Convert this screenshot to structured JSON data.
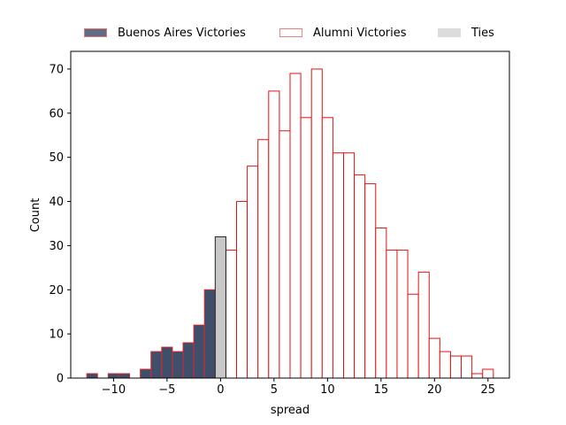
{
  "chart_data": {
    "type": "bar",
    "xlabel": "spread",
    "ylabel": "Count",
    "xlim": [
      -14,
      27
    ],
    "ylim": [
      0,
      74
    ],
    "xticks": [
      -10,
      -5,
      0,
      5,
      10,
      15,
      20,
      25
    ],
    "yticks": [
      0,
      10,
      20,
      30,
      40,
      50,
      60,
      70
    ],
    "bin_width": 1,
    "legend_position": "top-center, outside plot",
    "series": [
      {
        "name": "Buenos Aires Victories",
        "color": "#3f4f6b",
        "edgecolor": "#d62728",
        "x": [
          -12,
          -10,
          -9,
          -7,
          -6,
          -5,
          -4,
          -3,
          -2,
          -1
        ],
        "values": [
          1,
          1,
          1,
          2,
          6,
          7,
          6,
          8,
          12,
          20
        ]
      },
      {
        "name": "Alumni Victories",
        "color": "#ffffff",
        "edgecolor": "#e81010",
        "x": [
          1,
          2,
          3,
          4,
          5,
          6,
          7,
          8,
          9,
          10,
          11,
          12,
          13,
          14,
          15,
          16,
          17,
          18,
          19,
          20,
          21,
          22,
          23,
          24,
          25
        ],
        "values": [
          29,
          40,
          48,
          54,
          65,
          56,
          69,
          59,
          70,
          59,
          51,
          51,
          46,
          44,
          34,
          29,
          29,
          19,
          24,
          9,
          6,
          5,
          5,
          1,
          2
        ]
      },
      {
        "name": "Ties",
        "color": "#c8c8c8",
        "edgecolor": "#222222",
        "x": [
          0
        ],
        "values": [
          32
        ]
      }
    ]
  },
  "legend": {
    "items": [
      {
        "label": "Buenos Aires Victories"
      },
      {
        "label": "Alumni Victories"
      },
      {
        "label": "Ties"
      }
    ]
  }
}
